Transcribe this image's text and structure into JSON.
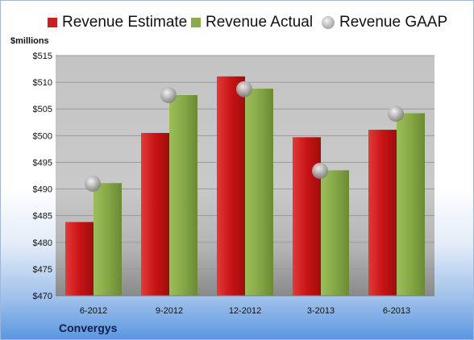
{
  "chart_data": {
    "type": "bar",
    "ylabel": "$millions",
    "ylim": [
      470,
      515
    ],
    "ytick_step": 5,
    "categories": [
      "6-2012",
      "9-2012",
      "12-2012",
      "3-2013",
      "6-2013"
    ],
    "series": [
      {
        "name": "Revenue Estimate",
        "kind": "bar",
        "color": "#cc1f1f",
        "values": [
          483.8,
          500.5,
          511.1,
          499.7,
          501.1
        ]
      },
      {
        "name": "Revenue Actual",
        "kind": "bar",
        "color": "#8aab4a",
        "values": [
          491.1,
          507.6,
          508.8,
          493.5,
          504.2
        ]
      },
      {
        "name": "Revenue GAAP",
        "kind": "marker",
        "color": "#b0b0b0",
        "values": [
          491.0,
          507.6,
          508.7,
          493.4,
          504.1
        ]
      }
    ],
    "ytick_labels": [
      "$470",
      "$475",
      "$480",
      "$485",
      "$490",
      "$495",
      "$500",
      "$505",
      "$510",
      "$515"
    ],
    "grid": true,
    "legend_position": "top",
    "footer": "Convergys"
  }
}
